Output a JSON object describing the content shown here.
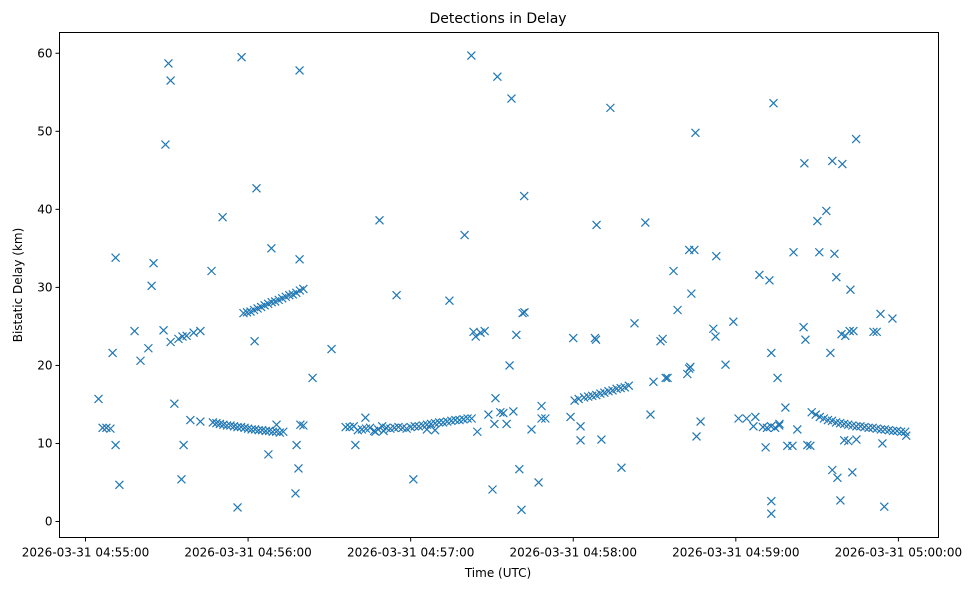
{
  "chart_data": {
    "type": "scatter",
    "title": "Detections in Delay",
    "xlabel": "Time (UTC)",
    "ylabel": "Bistatic Delay (km)",
    "x_units": "seconds after 2026-03-31 04:55:00",
    "xlim": [
      -9.6,
      314.8
    ],
    "ylim": [
      -2.05,
      62.66
    ],
    "grid": false,
    "marker": "x",
    "color": "#1f77b4",
    "xticks": [
      {
        "value": 0,
        "label": "2026-03-31 04:55:00"
      },
      {
        "value": 60,
        "label": "2026-03-31 04:56:00"
      },
      {
        "value": 120,
        "label": "2026-03-31 04:57:00"
      },
      {
        "value": 180,
        "label": "2026-03-31 04:58:00"
      },
      {
        "value": 240,
        "label": "2026-03-31 04:59:00"
      },
      {
        "value": 300,
        "label": "2026-03-31 05:00:00"
      }
    ],
    "yticks": [
      {
        "value": 0,
        "label": "0"
      },
      {
        "value": 10,
        "label": "10"
      },
      {
        "value": 20,
        "label": "20"
      },
      {
        "value": 30,
        "label": "30"
      },
      {
        "value": 40,
        "label": "40"
      },
      {
        "value": 50,
        "label": "50"
      },
      {
        "value": 60,
        "label": "60"
      }
    ],
    "points": [
      [
        4.8,
        15.7
      ],
      [
        6.3,
        12
      ],
      [
        7.7,
        12
      ],
      [
        9.2,
        11.9
      ],
      [
        10,
        21.6
      ],
      [
        11.1,
        33.8
      ],
      [
        11.1,
        9.8
      ],
      [
        12.5,
        4.7
      ],
      [
        18.1,
        24.4
      ],
      [
        20.3,
        20.6
      ],
      [
        23.2,
        22.2
      ],
      [
        24.4,
        30.2
      ],
      [
        25.1,
        33.1
      ],
      [
        28.8,
        24.5
      ],
      [
        29.5,
        48.3
      ],
      [
        30.6,
        58.7
      ],
      [
        31.4,
        56.5
      ],
      [
        31.4,
        23
      ],
      [
        32.8,
        15.1
      ],
      [
        34.3,
        23.4
      ],
      [
        35.8,
        23.7
      ],
      [
        37.3,
        23.8
      ],
      [
        39.9,
        24.2
      ],
      [
        42.4,
        24.4
      ],
      [
        35.4,
        5.4
      ],
      [
        36.2,
        9.8
      ],
      [
        38.7,
        13
      ],
      [
        42.4,
        12.8
      ],
      [
        46.5,
        32.1
      ],
      [
        50.6,
        39
      ],
      [
        56.1,
        1.8
      ],
      [
        57.6,
        59.5
      ],
      [
        62.4,
        23.1
      ],
      [
        63.1,
        42.7
      ],
      [
        67.5,
        8.6
      ],
      [
        68.6,
        35
      ],
      [
        70.5,
        12.4
      ],
      [
        73,
        11.5
      ],
      [
        77.5,
        3.6
      ],
      [
        77.9,
        9.8
      ],
      [
        78.6,
        6.8
      ],
      [
        79,
        33.6
      ],
      [
        79,
        57.8
      ],
      [
        79.3,
        12.4
      ],
      [
        80.4,
        12.3
      ],
      [
        83.8,
        18.4
      ],
      [
        90.8,
        22.1
      ],
      [
        99.6,
        9.8
      ],
      [
        103.3,
        13.3
      ],
      [
        108.5,
        38.6
      ],
      [
        114.8,
        29
      ],
      [
        121,
        5.4
      ],
      [
        134.3,
        28.3
      ],
      [
        139.9,
        36.7
      ],
      [
        142.4,
        59.7
      ],
      [
        143.2,
        24.3
      ],
      [
        144,
        23.7
      ],
      [
        145.8,
        24.2
      ],
      [
        147.3,
        24.4
      ],
      [
        144.6,
        11.5
      ],
      [
        148.7,
        13.7
      ],
      [
        150.2,
        4.1
      ],
      [
        151.3,
        15.8
      ],
      [
        152,
        57
      ],
      [
        150.9,
        12.5
      ],
      [
        153.1,
        14
      ],
      [
        154.2,
        13.9
      ],
      [
        155.4,
        12.5
      ],
      [
        156.5,
        20
      ],
      [
        157.2,
        54.2
      ],
      [
        157.9,
        14.1
      ],
      [
        159,
        23.9
      ],
      [
        160.1,
        6.7
      ],
      [
        160.9,
        1.5
      ],
      [
        161.3,
        26.7
      ],
      [
        162,
        26.8
      ],
      [
        161.9,
        41.7
      ],
      [
        164.6,
        11.8
      ],
      [
        167.2,
        5
      ],
      [
        168.3,
        14.8
      ],
      [
        169.7,
        13.2
      ],
      [
        168.3,
        13.2
      ],
      [
        180,
        23.5
      ],
      [
        182.7,
        10.4
      ],
      [
        182.7,
        12.2
      ],
      [
        188,
        23.5
      ],
      [
        188.4,
        23.3
      ],
      [
        188.6,
        38
      ],
      [
        190.4,
        10.5
      ],
      [
        193.7,
        53
      ],
      [
        197.8,
        6.9
      ],
      [
        202.6,
        25.4
      ],
      [
        206.6,
        38.3
      ],
      [
        208.5,
        13.7
      ],
      [
        209.6,
        17.9
      ],
      [
        212.2,
        23.1
      ],
      [
        213,
        23.4
      ],
      [
        214.1,
        18.4
      ],
      [
        214.8,
        18.4
      ],
      [
        217,
        32.1
      ],
      [
        218.5,
        27.1
      ],
      [
        222.1,
        18.9
      ],
      [
        222.8,
        19.6
      ],
      [
        223.2,
        19.8
      ],
      [
        222.8,
        34.8
      ],
      [
        224.7,
        34.8
      ],
      [
        223.6,
        29.2
      ],
      [
        225.1,
        49.8
      ],
      [
        225.5,
        10.9
      ],
      [
        227,
        12.8
      ],
      [
        231.7,
        24.7
      ],
      [
        232.5,
        23.7
      ],
      [
        232.8,
        34
      ],
      [
        236.2,
        20.1
      ],
      [
        239.1,
        25.6
      ],
      [
        241,
        13.2
      ],
      [
        244,
        13.2
      ],
      [
        246.5,
        12.2
      ],
      [
        247.2,
        13.4
      ],
      [
        248.7,
        31.6
      ],
      [
        251,
        9.5
      ],
      [
        252.4,
        30.9
      ],
      [
        253.1,
        21.6
      ],
      [
        253.1,
        2.6
      ],
      [
        253.1,
        1
      ],
      [
        253.9,
        53.6
      ],
      [
        255.4,
        18.4
      ],
      [
        256.1,
        12.5
      ],
      [
        258.3,
        14.6
      ],
      [
        259,
        9.7
      ],
      [
        260.9,
        9.7
      ],
      [
        261.3,
        34.5
      ],
      [
        262.7,
        11.8
      ],
      [
        265,
        24.9
      ],
      [
        265.7,
        23.3
      ],
      [
        265.3,
        45.9
      ],
      [
        266.4,
        9.8
      ],
      [
        267.5,
        9.7
      ],
      [
        270.1,
        38.5
      ],
      [
        270.8,
        34.5
      ],
      [
        273.4,
        39.8
      ],
      [
        274.9,
        21.6
      ],
      [
        275.6,
        46.2
      ],
      [
        275.6,
        6.6
      ],
      [
        276.4,
        34.3
      ],
      [
        277.1,
        31.3
      ],
      [
        277.5,
        5.6
      ],
      [
        279,
        24
      ],
      [
        280.4,
        23.8
      ],
      [
        282,
        24.4
      ],
      [
        283.4,
        24.4
      ],
      [
        278.6,
        2.7
      ],
      [
        279.3,
        45.8
      ],
      [
        280,
        10.4
      ],
      [
        281.5,
        10.3
      ],
      [
        282.3,
        29.7
      ],
      [
        283,
        6.3
      ],
      [
        284.4,
        49
      ],
      [
        284.5,
        10.5
      ],
      [
        290.8,
        24.3
      ],
      [
        292,
        24.3
      ],
      [
        293.4,
        26.6
      ],
      [
        294.1,
        10
      ],
      [
        294.8,
        1.9
      ],
      [
        297.8,
        26
      ],
      [
        302.9,
        11
      ],
      [
        47,
        12.7
      ],
      [
        48.3,
        12.6
      ],
      [
        49.6,
        12.5
      ],
      [
        50.9,
        12.4
      ],
      [
        52.2,
        12.3
      ],
      [
        53.5,
        12.3
      ],
      [
        54.8,
        12.2
      ],
      [
        56.1,
        12.1
      ],
      [
        57.4,
        12.1
      ],
      [
        58.7,
        12
      ],
      [
        60,
        11.9
      ],
      [
        61.3,
        11.8
      ],
      [
        62.6,
        11.8
      ],
      [
        63.9,
        11.7
      ],
      [
        65.2,
        11.7
      ],
      [
        66.5,
        11.6
      ],
      [
        67.8,
        11.6
      ],
      [
        69.1,
        11.5
      ],
      [
        70.4,
        11.5
      ],
      [
        71.7,
        11.4
      ],
      [
        58.3,
        26.7
      ],
      [
        59.6,
        26.8
      ],
      [
        60.9,
        26.9
      ],
      [
        62.2,
        27.1
      ],
      [
        63.5,
        27.3
      ],
      [
        64.8,
        27.5
      ],
      [
        66.1,
        27.7
      ],
      [
        67.4,
        27.9
      ],
      [
        68.7,
        28.1
      ],
      [
        70,
        28.2
      ],
      [
        71.3,
        28.4
      ],
      [
        72.6,
        28.6
      ],
      [
        73.9,
        28.8
      ],
      [
        75.2,
        29
      ],
      [
        76.5,
        29.1
      ],
      [
        77.8,
        29.3
      ],
      [
        79.1,
        29.6
      ],
      [
        80.4,
        29.8
      ],
      [
        96,
        12.1
      ],
      [
        97.5,
        12.1
      ],
      [
        99,
        12.2
      ],
      [
        100.5,
        11.7
      ],
      [
        102,
        11.8
      ],
      [
        103.5,
        11.9
      ],
      [
        105,
        12
      ],
      [
        106.5,
        11.6
      ],
      [
        108,
        11.8
      ],
      [
        109.5,
        12.2
      ],
      [
        111,
        12
      ],
      [
        112.5,
        11.9
      ],
      [
        114,
        12
      ],
      [
        115.5,
        12.1
      ],
      [
        117,
        12
      ],
      [
        118.5,
        11.9
      ],
      [
        120,
        12.1
      ],
      [
        121.5,
        12.2
      ],
      [
        123,
        12.2
      ],
      [
        124.5,
        12.3
      ],
      [
        126,
        12.4
      ],
      [
        127.5,
        12.5
      ],
      [
        129,
        12.6
      ],
      [
        130.5,
        12.7
      ],
      [
        132,
        12.7
      ],
      [
        133.5,
        12.8
      ],
      [
        135,
        12.9
      ],
      [
        136.5,
        13
      ],
      [
        138,
        13
      ],
      [
        139.5,
        13.1
      ],
      [
        141,
        13.2
      ],
      [
        142.5,
        13.2
      ],
      [
        107,
        11.5
      ],
      [
        110,
        11.6
      ],
      [
        126,
        11.8
      ],
      [
        129,
        11.7
      ],
      [
        179,
        13.4
      ],
      [
        180.5,
        15.5
      ],
      [
        182,
        15.7
      ],
      [
        184,
        15.9
      ],
      [
        185.5,
        16
      ],
      [
        187,
        16.1
      ],
      [
        188.5,
        16.2
      ],
      [
        190,
        16.4
      ],
      [
        191.5,
        16.5
      ],
      [
        193,
        16.7
      ],
      [
        194.5,
        16.8
      ],
      [
        196,
        17
      ],
      [
        197.5,
        17.1
      ],
      [
        199,
        17.2
      ],
      [
        200.5,
        17.4
      ],
      [
        250,
        12.1
      ],
      [
        251.5,
        12
      ],
      [
        253,
        12.2
      ],
      [
        254.5,
        12
      ],
      [
        256,
        12.3
      ],
      [
        268,
        14
      ],
      [
        269.5,
        13.7
      ],
      [
        271,
        13.4
      ],
      [
        272.5,
        13.2
      ],
      [
        274,
        13
      ],
      [
        275.5,
        12.9
      ],
      [
        277,
        12.7
      ],
      [
        278.5,
        12.6
      ],
      [
        280,
        12.5
      ],
      [
        281.5,
        12.4
      ],
      [
        283,
        12.3
      ],
      [
        284.5,
        12.2
      ],
      [
        286,
        12.2
      ],
      [
        287.5,
        12.1
      ],
      [
        289,
        12
      ],
      [
        290.5,
        12
      ],
      [
        292,
        11.9
      ],
      [
        293.5,
        11.8
      ],
      [
        295,
        11.8
      ],
      [
        296.5,
        11.7
      ],
      [
        298,
        11.6
      ],
      [
        299.5,
        11.6
      ],
      [
        301,
        11.5
      ],
      [
        302.5,
        11.5
      ]
    ]
  }
}
